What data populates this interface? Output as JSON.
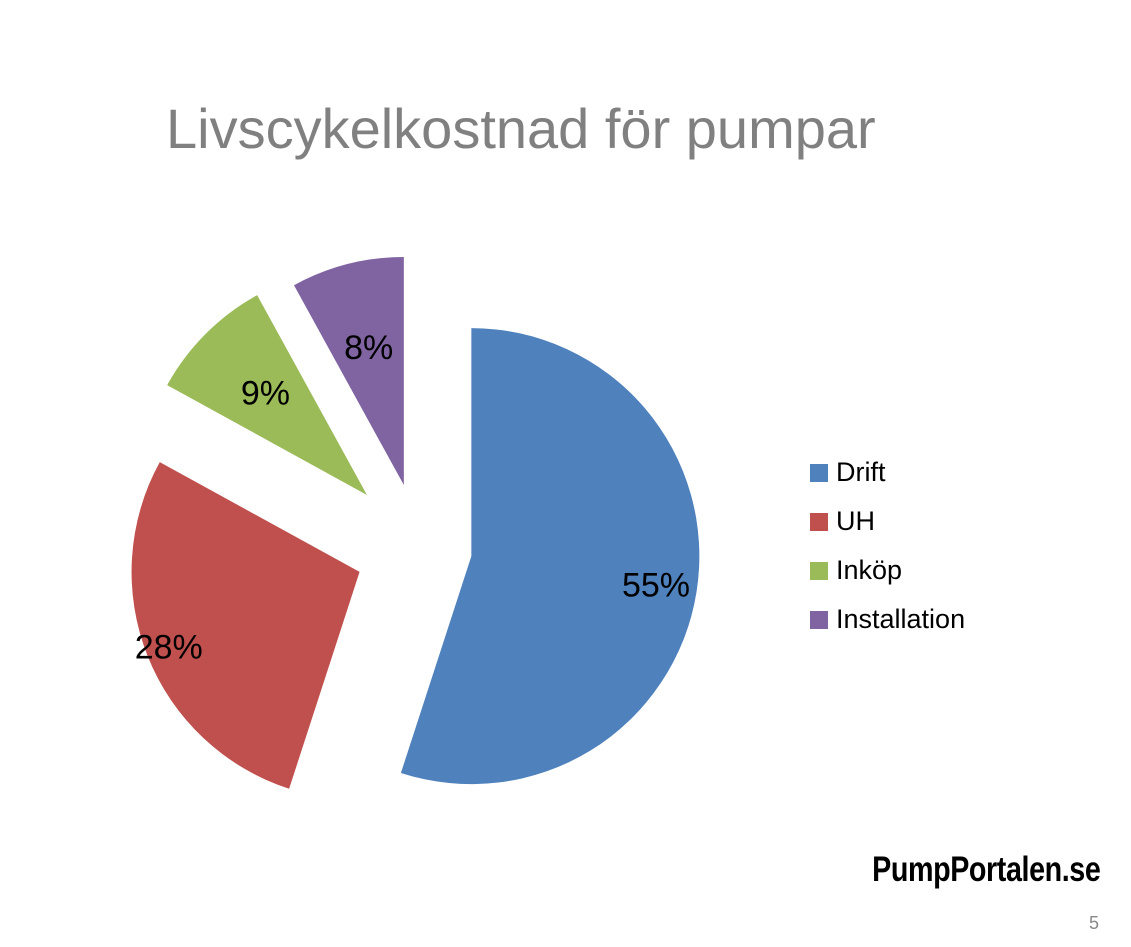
{
  "slide": {
    "title": "Livscykelkostnad för pumpar",
    "logo": "PumpPortalen.se",
    "page_number": "5"
  },
  "chart_data": {
    "type": "pie",
    "title": "",
    "categories": [
      "Drift",
      "UH",
      "Inköp",
      "Installation"
    ],
    "values": [
      55,
      28,
      9,
      8
    ],
    "labels": [
      "55%",
      "28%",
      "9%",
      "8%"
    ],
    "colors": [
      "#4F81BD",
      "#C0504D",
      "#9BBB59",
      "#8064A2"
    ],
    "exploded": true,
    "legend_placement": "right"
  }
}
